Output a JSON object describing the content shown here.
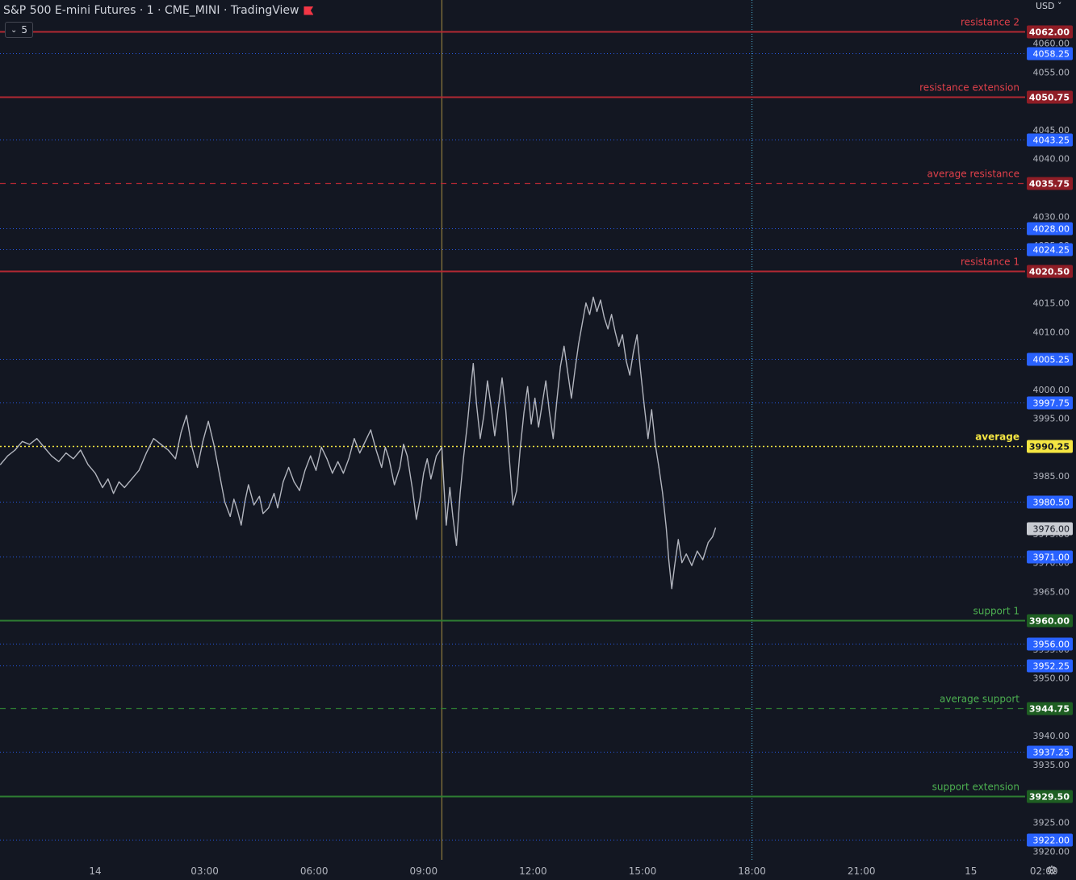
{
  "header": {
    "title": "S&P 500 E-mini Futures · 1 · CME_MINI · TradingView",
    "interval_badge": "5",
    "currency": "USD"
  },
  "colors": {
    "background": "#131722",
    "resistance": "#b22833",
    "resistance_label": "#e0404a",
    "support": "#2e7d32",
    "support_label": "#4caf50",
    "average": "#f5e642",
    "blue_level": "#2962ff",
    "price_line": "#b2b5be",
    "axis_text": "#b2b5be",
    "crosshair_vertical": "#8d7b3d",
    "session_line": "#4fb3d9"
  },
  "chart_data": {
    "type": "line",
    "ylim": [
      3918.5,
      4067.5
    ],
    "y_ticks": [
      4060,
      4055,
      4045,
      4040,
      4030,
      4025,
      4015,
      4010,
      4000,
      3995,
      3985,
      3975,
      3970,
      3965,
      3955,
      3950,
      3940,
      3935,
      3925,
      3920
    ],
    "x_ticks": [
      {
        "label": "14",
        "t": 0
      },
      {
        "label": "03:00",
        "t": 3
      },
      {
        "label": "06:00",
        "t": 6
      },
      {
        "label": "09:00",
        "t": 9
      },
      {
        "label": "12:00",
        "t": 12
      },
      {
        "label": "15:00",
        "t": 15
      },
      {
        "label": "18:00",
        "t": 18
      },
      {
        "label": "21:00",
        "t": 21
      },
      {
        "label": "15",
        "t": 24
      },
      {
        "label": "02:00",
        "t": 26
      }
    ],
    "levels": [
      {
        "name": "resistance 2",
        "price": 4062.0,
        "kind": "resistance",
        "style": "solid"
      },
      {
        "name": "resistance extension",
        "price": 4050.75,
        "kind": "resistance",
        "style": "solid"
      },
      {
        "name": "average resistance",
        "price": 4035.75,
        "kind": "resistance",
        "style": "dashed"
      },
      {
        "name": "resistance 1",
        "price": 4020.5,
        "kind": "resistance",
        "style": "solid"
      },
      {
        "name": "average",
        "price": 3990.25,
        "kind": "average",
        "style": "dotted"
      },
      {
        "name": "support 1",
        "price": 3960.0,
        "kind": "support",
        "style": "solid"
      },
      {
        "name": "average support",
        "price": 3944.75,
        "kind": "support",
        "style": "dashed"
      },
      {
        "name": "support extension",
        "price": 3929.5,
        "kind": "support",
        "style": "solid"
      }
    ],
    "blue_levels": [
      4058.25,
      4043.25,
      4028.0,
      4024.25,
      4005.25,
      3997.75,
      3980.5,
      3971.0,
      3956.0,
      3952.25,
      3937.25,
      3922.0
    ],
    "last_price": 3976.0,
    "session_start_t": 9.5,
    "session_end_t": 18,
    "series": [
      {
        "values": [
          [
            -2.6,
            3987.0
          ],
          [
            -2.4,
            3988.5
          ],
          [
            -2.2,
            3989.5
          ],
          [
            -2.0,
            3991.0
          ],
          [
            -1.8,
            3990.5
          ],
          [
            -1.6,
            3991.5
          ],
          [
            -1.4,
            3990.0
          ],
          [
            -1.2,
            3988.5
          ],
          [
            -1.0,
            3987.5
          ],
          [
            -0.8,
            3989.0
          ],
          [
            -0.6,
            3988.0
          ],
          [
            -0.4,
            3989.5
          ],
          [
            -0.2,
            3987.0
          ],
          [
            0.0,
            3985.5
          ],
          [
            0.2,
            3983.0
          ],
          [
            0.35,
            3984.5
          ],
          [
            0.5,
            3982.0
          ],
          [
            0.65,
            3984.0
          ],
          [
            0.8,
            3983.0
          ],
          [
            1.0,
            3984.5
          ],
          [
            1.2,
            3986.0
          ],
          [
            1.4,
            3989.0
          ],
          [
            1.6,
            3991.5
          ],
          [
            1.8,
            3990.5
          ],
          [
            2.0,
            3989.5
          ],
          [
            2.2,
            3988.0
          ],
          [
            2.35,
            3992.5
          ],
          [
            2.5,
            3995.5
          ],
          [
            2.65,
            3990.0
          ],
          [
            2.8,
            3986.5
          ],
          [
            2.95,
            3991.0
          ],
          [
            3.1,
            3994.5
          ],
          [
            3.25,
            3990.5
          ],
          [
            3.4,
            3985.5
          ],
          [
            3.55,
            3980.5
          ],
          [
            3.7,
            3978.0
          ],
          [
            3.8,
            3981.0
          ],
          [
            3.9,
            3979.0
          ],
          [
            4.0,
            3976.5
          ],
          [
            4.1,
            3980.5
          ],
          [
            4.2,
            3983.5
          ],
          [
            4.35,
            3980.0
          ],
          [
            4.5,
            3981.5
          ],
          [
            4.6,
            3978.5
          ],
          [
            4.75,
            3979.5
          ],
          [
            4.9,
            3982.0
          ],
          [
            5.0,
            3979.5
          ],
          [
            5.15,
            3984.0
          ],
          [
            5.3,
            3986.5
          ],
          [
            5.45,
            3984.0
          ],
          [
            5.6,
            3982.5
          ],
          [
            5.75,
            3986.0
          ],
          [
            5.9,
            3988.5
          ],
          [
            6.05,
            3986.0
          ],
          [
            6.2,
            3990.0
          ],
          [
            6.35,
            3988.0
          ],
          [
            6.5,
            3985.5
          ],
          [
            6.65,
            3987.5
          ],
          [
            6.8,
            3985.5
          ],
          [
            6.95,
            3988.0
          ],
          [
            7.1,
            3991.5
          ],
          [
            7.25,
            3989.0
          ],
          [
            7.4,
            3991.0
          ],
          [
            7.55,
            3993.0
          ],
          [
            7.7,
            3989.5
          ],
          [
            7.85,
            3986.5
          ],
          [
            7.95,
            3990.0
          ],
          [
            8.05,
            3988.0
          ],
          [
            8.2,
            3983.5
          ],
          [
            8.35,
            3986.5
          ],
          [
            8.45,
            3990.5
          ],
          [
            8.55,
            3988.5
          ],
          [
            8.7,
            3982.5
          ],
          [
            8.8,
            3977.5
          ],
          [
            8.9,
            3981.0
          ],
          [
            9.0,
            3985.5
          ],
          [
            9.1,
            3988.0
          ],
          [
            9.2,
            3984.5
          ],
          [
            9.35,
            3988.5
          ],
          [
            9.5,
            3990.0
          ],
          [
            9.55,
            3984.0
          ],
          [
            9.62,
            3976.5
          ],
          [
            9.72,
            3983.0
          ],
          [
            9.8,
            3978.0
          ],
          [
            9.9,
            3973.0
          ],
          [
            10.0,
            3982.0
          ],
          [
            10.1,
            3988.5
          ],
          [
            10.2,
            3994.0
          ],
          [
            10.28,
            3999.5
          ],
          [
            10.36,
            4004.5
          ],
          [
            10.45,
            3997.5
          ],
          [
            10.55,
            3991.5
          ],
          [
            10.65,
            3995.5
          ],
          [
            10.75,
            4001.5
          ],
          [
            10.85,
            3997.0
          ],
          [
            10.95,
            3992.0
          ],
          [
            11.05,
            3997.0
          ],
          [
            11.15,
            4002.0
          ],
          [
            11.25,
            3996.5
          ],
          [
            11.35,
            3988.0
          ],
          [
            11.45,
            3980.0
          ],
          [
            11.55,
            3982.5
          ],
          [
            11.65,
            3990.0
          ],
          [
            11.75,
            3996.0
          ],
          [
            11.85,
            4000.5
          ],
          [
            11.95,
            3994.0
          ],
          [
            12.05,
            3998.5
          ],
          [
            12.15,
            3993.5
          ],
          [
            12.25,
            3997.5
          ],
          [
            12.35,
            4001.5
          ],
          [
            12.45,
            3996.0
          ],
          [
            12.55,
            3991.5
          ],
          [
            12.65,
            3998.0
          ],
          [
            12.75,
            4004.0
          ],
          [
            12.85,
            4007.5
          ],
          [
            12.95,
            4003.0
          ],
          [
            13.05,
            3998.5
          ],
          [
            13.15,
            4003.5
          ],
          [
            13.25,
            4008.0
          ],
          [
            13.35,
            4011.5
          ],
          [
            13.45,
            4015.0
          ],
          [
            13.55,
            4013.0
          ],
          [
            13.65,
            4016.0
          ],
          [
            13.75,
            4013.5
          ],
          [
            13.85,
            4015.5
          ],
          [
            13.95,
            4012.5
          ],
          [
            14.05,
            4010.5
          ],
          [
            14.15,
            4013.0
          ],
          [
            14.25,
            4010.0
          ],
          [
            14.35,
            4007.5
          ],
          [
            14.45,
            4009.5
          ],
          [
            14.55,
            4005.0
          ],
          [
            14.65,
            4002.5
          ],
          [
            14.75,
            4006.5
          ],
          [
            14.85,
            4009.5
          ],
          [
            14.95,
            4003.0
          ],
          [
            15.05,
            3997.0
          ],
          [
            15.15,
            3991.5
          ],
          [
            15.25,
            3996.5
          ],
          [
            15.35,
            3990.5
          ],
          [
            15.45,
            3986.5
          ],
          [
            15.55,
            3982.0
          ],
          [
            15.65,
            3976.0
          ],
          [
            15.72,
            3970.5
          ],
          [
            15.8,
            3965.5
          ],
          [
            15.88,
            3969.5
          ],
          [
            15.98,
            3974.0
          ],
          [
            16.08,
            3970.0
          ],
          [
            16.2,
            3971.5
          ],
          [
            16.35,
            3969.5
          ],
          [
            16.5,
            3972.0
          ],
          [
            16.65,
            3970.5
          ],
          [
            16.8,
            3973.5
          ],
          [
            16.92,
            3974.5
          ],
          [
            17.0,
            3976.0
          ]
        ]
      }
    ],
    "grid": false,
    "legend": "none"
  }
}
